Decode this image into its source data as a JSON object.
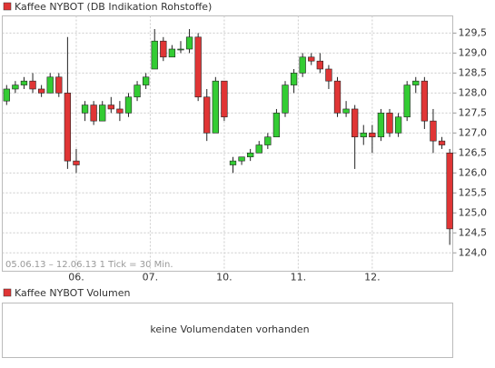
{
  "chart_data": {
    "type": "candlestick",
    "title": "Kaffee NYBOT (DB Indikation Rohstoffe)",
    "subtitle": "05.06.13 – 12.06.13   1 Tick = 30 Min.",
    "up_color": "#33cc33",
    "down_color": "#e03535",
    "grid": true,
    "xlim": [
      0,
      103.5
    ],
    "xticks": [
      {
        "value": 17,
        "label": "06."
      },
      {
        "value": 34,
        "label": "07."
      },
      {
        "value": 51,
        "label": "10."
      },
      {
        "value": 68,
        "label": "11."
      },
      {
        "value": 85,
        "label": "12."
      }
    ],
    "ylim": [
      123.54,
      129.93
    ],
    "yticks": [
      {
        "value": 124.0,
        "label": "124,0"
      },
      {
        "value": 124.5,
        "label": "124,5"
      },
      {
        "value": 125.0,
        "label": "125,0"
      },
      {
        "value": 125.5,
        "label": "125,5"
      },
      {
        "value": 126.0,
        "label": "126,0"
      },
      {
        "value": 126.5,
        "label": "126,5"
      },
      {
        "value": 127.0,
        "label": "127,0"
      },
      {
        "value": 127.5,
        "label": "127,5"
      },
      {
        "value": 128.0,
        "label": "128,0"
      },
      {
        "value": 128.5,
        "label": "128,5"
      },
      {
        "value": 129.0,
        "label": "129,0"
      },
      {
        "value": 129.5,
        "label": "129,5"
      }
    ],
    "x": [
      1,
      3,
      5,
      7,
      9,
      11,
      13,
      15,
      17,
      19,
      21,
      23,
      25,
      27,
      29,
      31,
      33,
      35,
      37,
      39,
      41,
      43,
      45,
      47,
      49,
      51,
      53,
      55,
      57,
      59,
      61,
      63,
      65,
      67,
      69,
      71,
      73,
      75,
      77,
      79,
      81,
      83,
      85,
      87,
      89,
      91,
      93,
      95,
      97,
      99,
      101,
      102.8
    ],
    "open": [
      127.8,
      128.1,
      128.2,
      128.3,
      128.1,
      128.0,
      128.4,
      128.0,
      126.3,
      127.5,
      127.7,
      127.3,
      127.7,
      127.6,
      127.5,
      127.9,
      128.2,
      128.6,
      129.3,
      128.9,
      129.1,
      129.1,
      129.4,
      127.9,
      127.0,
      128.3,
      126.2,
      126.3,
      126.4,
      126.5,
      126.7,
      126.9,
      127.5,
      128.2,
      128.5,
      128.9,
      128.8,
      128.6,
      128.3,
      127.5,
      127.6,
      126.9,
      127.0,
      126.9,
      127.5,
      127.0,
      127.4,
      128.2,
      128.3,
      127.3,
      126.8,
      126.5
    ],
    "high": [
      128.2,
      128.3,
      128.4,
      128.5,
      128.2,
      128.5,
      128.5,
      129.4,
      126.6,
      127.8,
      127.8,
      127.8,
      127.9,
      127.8,
      128.0,
      128.3,
      128.5,
      129.6,
      129.4,
      129.2,
      129.3,
      129.6,
      129.5,
      128.1,
      128.4,
      128.3,
      126.4,
      126.4,
      126.6,
      126.8,
      127.0,
      127.6,
      128.3,
      128.6,
      129.0,
      129.0,
      129.0,
      128.7,
      128.4,
      127.8,
      127.7,
      127.2,
      127.2,
      127.6,
      127.6,
      127.5,
      128.3,
      128.4,
      128.4,
      127.6,
      126.9,
      126.6
    ],
    "low": [
      127.7,
      128.0,
      128.1,
      128.0,
      127.9,
      128.0,
      127.9,
      126.1,
      126.0,
      127.3,
      127.2,
      127.3,
      127.5,
      127.3,
      127.4,
      127.8,
      128.1,
      128.6,
      128.8,
      128.9,
      129.0,
      129.0,
      127.8,
      126.8,
      127.0,
      127.3,
      126.0,
      126.2,
      126.3,
      126.5,
      126.6,
      126.9,
      127.4,
      128.0,
      128.4,
      128.7,
      128.5,
      128.1,
      127.4,
      127.4,
      126.1,
      126.7,
      126.5,
      126.8,
      126.9,
      126.9,
      127.3,
      128.0,
      127.1,
      126.5,
      126.6,
      124.2
    ],
    "close": [
      128.1,
      128.2,
      128.3,
      128.1,
      128.0,
      128.4,
      128.0,
      126.3,
      126.2,
      127.7,
      127.3,
      127.7,
      127.6,
      127.5,
      127.9,
      128.2,
      128.4,
      129.3,
      128.9,
      129.1,
      129.1,
      129.4,
      127.9,
      127.0,
      128.3,
      127.4,
      126.3,
      126.4,
      126.5,
      126.7,
      126.9,
      127.5,
      128.2,
      128.5,
      128.9,
      128.8,
      128.6,
      128.3,
      127.5,
      127.6,
      126.9,
      127.0,
      126.9,
      127.5,
      127.0,
      127.4,
      128.2,
      128.3,
      127.3,
      126.8,
      126.7,
      124.6
    ]
  },
  "volume_panel": {
    "title": "Kaffee NYBOT Volumen",
    "message": "keine Volumendaten vorhanden"
  }
}
